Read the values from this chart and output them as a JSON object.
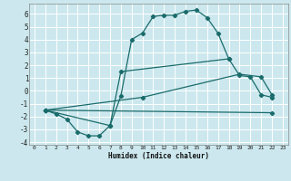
{
  "title": "",
  "xlabel": "Humidex (Indice chaleur)",
  "xlim": [
    -0.5,
    23.5
  ],
  "ylim": [
    -4.2,
    6.8
  ],
  "xticks": [
    0,
    1,
    2,
    3,
    4,
    5,
    6,
    7,
    8,
    9,
    10,
    11,
    12,
    13,
    14,
    15,
    16,
    17,
    18,
    19,
    20,
    21,
    22,
    23
  ],
  "yticks": [
    -4,
    -3,
    -2,
    -1,
    0,
    1,
    2,
    3,
    4,
    5,
    6
  ],
  "bg_color": "#cce8ee",
  "line_color": "#1a6b6b",
  "grid_color": "#ffffff",
  "curve1_x": [
    1,
    2,
    3,
    4,
    5,
    6,
    7,
    8,
    9,
    10,
    11,
    12,
    13,
    14,
    15,
    16,
    17,
    18,
    19,
    20,
    21,
    22
  ],
  "curve1_y": [
    -1.5,
    -1.8,
    -2.2,
    -3.2,
    -3.5,
    -3.5,
    -2.7,
    -0.4,
    4.0,
    4.5,
    5.8,
    5.9,
    5.9,
    6.2,
    6.3,
    5.7,
    4.5,
    2.5,
    1.2,
    1.1,
    -0.3,
    -0.5
  ],
  "curve2_x": [
    1,
    22
  ],
  "curve2_y": [
    -1.5,
    -1.7
  ],
  "curve3_x": [
    1,
    10,
    19,
    21,
    22
  ],
  "curve3_y": [
    -1.5,
    -0.5,
    1.3,
    1.1,
    -0.3
  ],
  "curve4_x": [
    1,
    7,
    8,
    18
  ],
  "curve4_y": [
    -1.5,
    -2.7,
    1.5,
    2.5
  ]
}
